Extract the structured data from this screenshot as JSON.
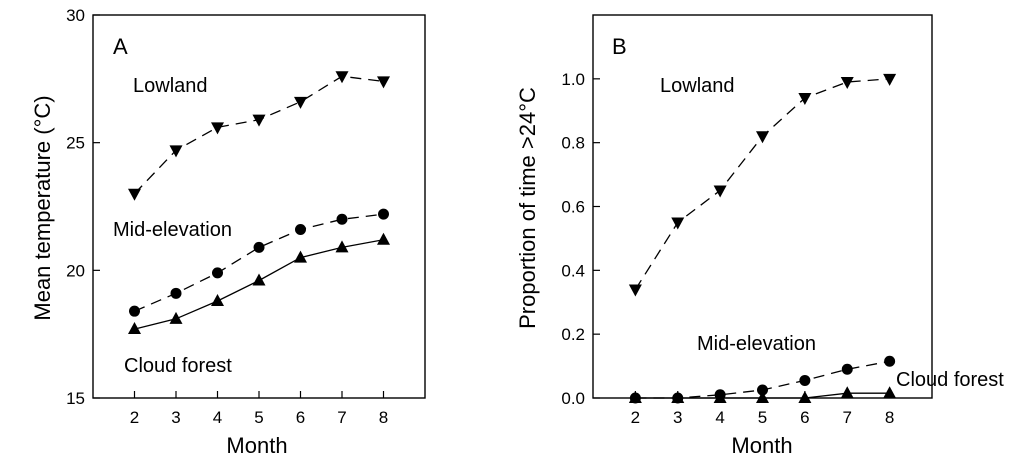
{
  "chart_data": [
    {
      "type": "line",
      "panel": "A",
      "xlabel": "Month",
      "ylabel": "Mean temperature (°C)",
      "xlim": [
        1,
        9
      ],
      "ylim": [
        15,
        30
      ],
      "xticks": [
        2,
        3,
        4,
        5,
        6,
        7,
        8
      ],
      "yticks": [
        15,
        20,
        25,
        30
      ],
      "x": [
        2,
        3,
        4,
        5,
        6,
        7,
        8
      ],
      "series": [
        {
          "name": "Lowland",
          "marker": "triangle-down",
          "line": "dashed",
          "values": [
            23.0,
            24.7,
            25.6,
            25.9,
            26.6,
            27.6,
            27.4
          ]
        },
        {
          "name": "Mid-elevation",
          "marker": "circle",
          "line": "dashed",
          "values": [
            18.4,
            19.1,
            19.9,
            20.9,
            21.6,
            22.0,
            22.2
          ]
        },
        {
          "name": "Cloud forest",
          "marker": "triangle-up",
          "line": "solid",
          "values": [
            17.7,
            18.1,
            18.8,
            19.6,
            20.5,
            20.9,
            21.2
          ]
        }
      ]
    },
    {
      "type": "line",
      "panel": "B",
      "xlabel": "Month",
      "ylabel": "Proportion of time >24°C",
      "xlim": [
        1,
        9
      ],
      "ylim": [
        0,
        1.2
      ],
      "xticks": [
        2,
        3,
        4,
        5,
        6,
        7,
        8
      ],
      "yticks": [
        0.0,
        0.2,
        0.4,
        0.6,
        0.8,
        1.0
      ],
      "x": [
        2,
        3,
        4,
        5,
        6,
        7,
        8
      ],
      "series": [
        {
          "name": "Lowland",
          "marker": "triangle-down",
          "line": "dashed",
          "values": [
            0.34,
            0.55,
            0.65,
            0.82,
            0.94,
            0.99,
            1.0
          ]
        },
        {
          "name": "Mid-elevation",
          "marker": "circle",
          "line": "dashed",
          "values": [
            0.0,
            0.0,
            0.01,
            0.025,
            0.055,
            0.09,
            0.115
          ]
        },
        {
          "name": "Cloud forest",
          "marker": "triangle-up",
          "line": "solid",
          "values": [
            0.0,
            0.0,
            0.0,
            0.0,
            0.0,
            0.015,
            0.015
          ]
        }
      ]
    }
  ],
  "labels": {
    "A": {
      "panel_letter": "A",
      "lowland": "Lowland",
      "mid": "Mid-elevation",
      "cloud": "Cloud forest"
    },
    "B": {
      "panel_letter": "B",
      "lowland": "Lowland",
      "mid": "Mid-elevation",
      "cloud": "Cloud forest"
    }
  }
}
